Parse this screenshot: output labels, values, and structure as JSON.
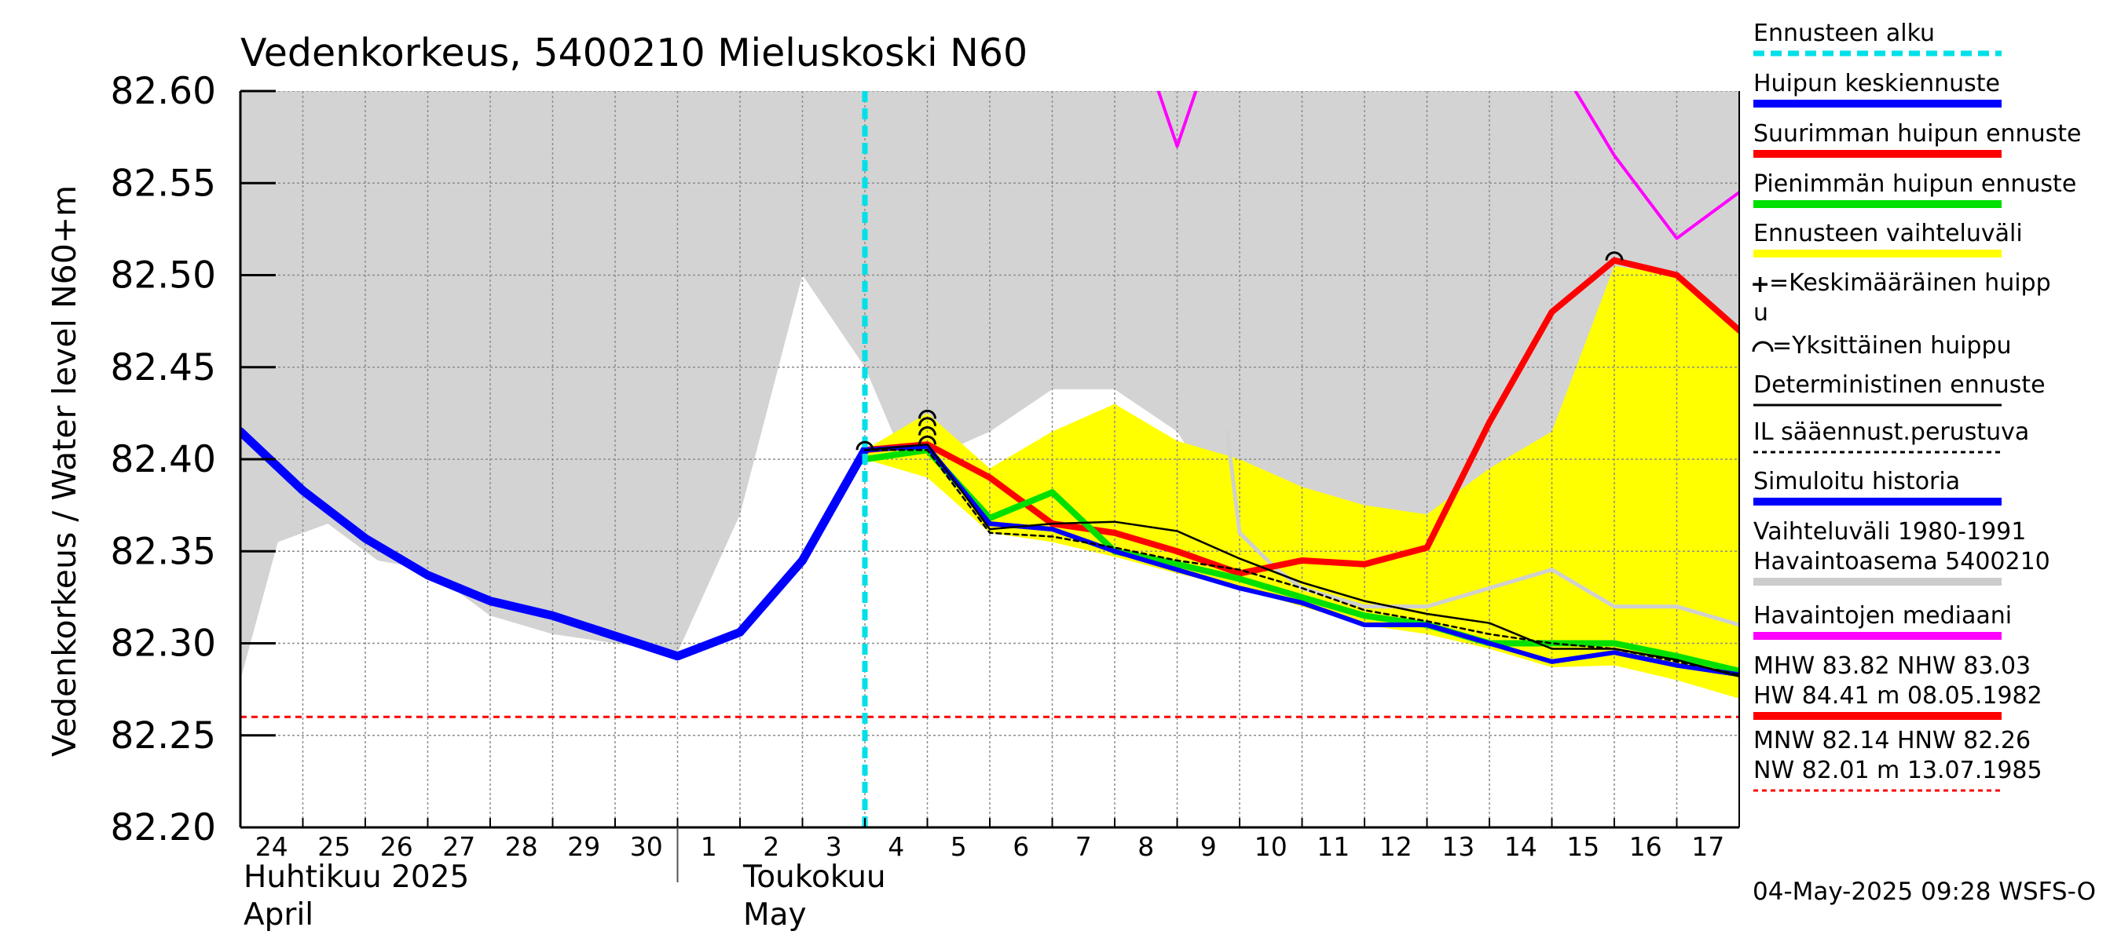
{
  "chart_data": {
    "type": "line",
    "title": "Vedenkorkeus, 5400210 Mieluskoski N60",
    "ylabel": "Vedenkorkeus / Water level    N60+m",
    "ylim": [
      82.2,
      82.6
    ],
    "yticks": [
      "82.20",
      "82.25",
      "82.30",
      "82.35",
      "82.40",
      "82.45",
      "82.50",
      "82.55",
      "82.60"
    ],
    "xlim": [
      0,
      24
    ],
    "x_tick_labels": [
      "24",
      "25",
      "26",
      "27",
      "28",
      "29",
      "30",
      "1",
      "2",
      "3",
      "4",
      "5",
      "6",
      "7",
      "8",
      "9",
      "10",
      "11",
      "12",
      "13",
      "14",
      "15",
      "16",
      "17"
    ],
    "month_labels": [
      {
        "top": "Huhtikuu  2025",
        "bottom": "April",
        "x": 0
      },
      {
        "top": "Toukokuu",
        "bottom": "May",
        "x": 8
      }
    ],
    "month_divider_x": 7.0,
    "grid": true,
    "forecast_start_x": 10.0,
    "series": [
      {
        "name": "Vaihteluväli 1980-1991",
        "role": "range_upper",
        "x": [
          0,
          0.6,
          1.4,
          2.2,
          3,
          4,
          5,
          6,
          7,
          8,
          9,
          10,
          10.5,
          11,
          12,
          13,
          14,
          15,
          16,
          17,
          18,
          19,
          20,
          21,
          22,
          23,
          24
        ],
        "values": [
          82.6,
          82.6,
          82.6,
          82.6,
          82.6,
          82.6,
          82.6,
          82.6,
          82.6,
          82.6,
          82.6,
          82.6,
          82.6,
          82.6,
          82.6,
          82.6,
          82.6,
          82.6,
          82.6,
          82.6,
          82.6,
          82.6,
          82.6,
          82.6,
          82.6,
          82.6,
          82.6
        ]
      },
      {
        "name": "",
        "role": "range_lower",
        "x": [
          0,
          0.6,
          1.4,
          2.2,
          3,
          4,
          5,
          6,
          7,
          8,
          9,
          10,
          10.5,
          11,
          12,
          13,
          14,
          15,
          16,
          17,
          18,
          19,
          20,
          21,
          22,
          23,
          24
        ],
        "values": [
          82.28,
          82.355,
          82.365,
          82.345,
          82.34,
          82.315,
          82.305,
          82.3,
          82.295,
          82.37,
          82.5,
          82.45,
          82.41,
          82.4,
          82.415,
          82.438,
          82.438,
          82.415,
          82.362,
          82.33,
          82.335,
          82.325,
          82.33,
          82.34,
          82.32,
          82.32,
          82.32
        ]
      },
      {
        "name": "Ennusteen vaihteluväli",
        "role": "forecast_band_upper",
        "x": [
          10,
          11,
          12,
          13,
          14,
          15,
          16,
          17,
          18,
          19,
          20,
          21,
          22,
          23,
          24
        ],
        "values": [
          82.405,
          82.425,
          82.395,
          82.415,
          82.43,
          82.41,
          82.4,
          82.385,
          82.375,
          82.37,
          82.395,
          82.415,
          82.505,
          82.5,
          82.47
        ]
      },
      {
        "name": "",
        "role": "forecast_band_lower",
        "x": [
          10,
          11,
          12,
          13,
          14,
          15,
          16,
          17,
          18,
          19,
          20,
          21,
          22,
          23,
          24
        ],
        "values": [
          82.4,
          82.39,
          82.36,
          82.355,
          82.347,
          82.338,
          82.33,
          82.32,
          82.31,
          82.305,
          82.297,
          82.287,
          82.288,
          82.28,
          82.27
        ]
      },
      {
        "name": "Havaintojen mediaani",
        "role": "median",
        "x": [
          14.6,
          15,
          15.4,
          21.2,
          22,
          23,
          24
        ],
        "values": [
          82.61,
          82.57,
          82.61,
          82.61,
          82.565,
          82.52,
          82.545
        ]
      },
      {
        "name": "",
        "role": "range_median_grey",
        "x": [
          15.8,
          16,
          16.6,
          17,
          18,
          19,
          20,
          21,
          22,
          23,
          24
        ],
        "values": [
          82.415,
          82.36,
          82.34,
          82.33,
          82.32,
          82.32,
          82.33,
          82.34,
          82.32,
          82.32,
          82.31
        ]
      },
      {
        "name": "Suurimman huipun ennuste",
        "role": "max",
        "x": [
          10,
          11,
          12,
          13,
          14,
          15,
          16,
          17,
          18,
          19,
          20,
          21,
          22,
          23,
          24
        ],
        "values": [
          82.405,
          82.408,
          82.39,
          82.365,
          82.36,
          82.35,
          82.338,
          82.345,
          82.343,
          82.352,
          82.42,
          82.48,
          82.508,
          82.5,
          82.47
        ]
      },
      {
        "name": "Pienimmän huipun ennuste",
        "role": "min",
        "x": [
          10,
          11,
          12,
          13,
          14,
          15,
          16,
          17,
          18,
          19,
          20,
          21,
          22,
          23,
          24
        ],
        "values": [
          82.4,
          82.405,
          82.368,
          82.382,
          82.35,
          82.343,
          82.335,
          82.325,
          82.315,
          82.31,
          82.3,
          82.3,
          82.3,
          82.293,
          82.285
        ]
      },
      {
        "name": "Deterministinen ennuste",
        "role": "deterministic",
        "x": [
          10,
          11,
          12,
          13,
          14,
          15,
          16,
          17,
          18,
          19,
          20,
          21,
          22,
          23,
          24
        ],
        "values": [
          82.405,
          82.408,
          82.362,
          82.365,
          82.366,
          82.361,
          82.346,
          82.333,
          82.323,
          82.316,
          82.311,
          82.297,
          82.297,
          82.291,
          82.282
        ]
      },
      {
        "name": "IL sääennust.perustuva",
        "role": "il",
        "x": [
          10,
          11,
          12,
          13,
          14,
          15,
          16,
          17,
          18,
          19,
          20,
          21,
          22,
          23,
          24
        ],
        "values": [
          82.405,
          82.405,
          82.36,
          82.358,
          82.352,
          82.345,
          82.34,
          82.33,
          82.318,
          82.312,
          82.305,
          82.3,
          82.297,
          82.29,
          82.283
        ]
      },
      {
        "name": "Simuloitu historia",
        "role": "simulated",
        "x": [
          0,
          1,
          2,
          3,
          4,
          5,
          6,
          7,
          8,
          9,
          10
        ],
        "values": [
          82.415,
          82.383,
          82.357,
          82.337,
          82.323,
          82.315,
          82.304,
          82.293,
          82.306,
          82.345,
          82.405
        ]
      },
      {
        "name": "Huipun keskiennuste",
        "role": "mean",
        "x": [
          9,
          10,
          11,
          12,
          13,
          14,
          15,
          16,
          17,
          18,
          19,
          20,
          21,
          22,
          23,
          24
        ],
        "values": [
          82.345,
          82.405,
          82.407,
          82.365,
          82.362,
          82.35,
          82.34,
          82.33,
          82.322,
          82.31,
          82.31,
          82.3,
          82.29,
          82.295,
          82.288,
          82.283
        ]
      }
    ],
    "reference_line": {
      "value": 82.26,
      "color": "#ff0000",
      "style": "dashed"
    },
    "peak_markers": [
      {
        "x": 10.0,
        "y": 82.405
      },
      {
        "x": 11.0,
        "y": 82.408
      },
      {
        "x": 11.0,
        "y": 82.413
      },
      {
        "x": 11.0,
        "y": 82.418
      },
      {
        "x": 11.0,
        "y": 82.422
      },
      {
        "x": 22.0,
        "y": 82.508
      }
    ]
  },
  "legend": {
    "items": [
      {
        "label": "Ennusteen alku",
        "color": "#00e0e8",
        "style": "dashed"
      },
      {
        "label": "Huipun keskiennuste",
        "color": "#0000ff",
        "style": "solid"
      },
      {
        "label": "Suurimman huipun ennuste",
        "color": "#ff0000",
        "style": "solid"
      },
      {
        "label": "Pienimmän huipun ennuste",
        "color": "#00e000",
        "style": "solid"
      },
      {
        "label": "Ennusteen vaihteluväli",
        "color": "#ffff00",
        "style": "solid"
      },
      {
        "label": "=Keskimääräinen huipp",
        "label2": "u",
        "symbol": "+",
        "style": "none"
      },
      {
        "label": "=Yksittäinen huippu",
        "symbol": "arc",
        "style": "none"
      },
      {
        "label": "Deterministinen ennuste",
        "color": "#000000",
        "style": "thin"
      },
      {
        "label": "IL sääennust.perustuva",
        "color": "#000000",
        "style": "dashed"
      },
      {
        "label": "Simuloitu historia",
        "color": "#0000ff",
        "style": "solid"
      },
      {
        "label": "Vaihteluväli 1980-1991",
        "label2": " Havaintoasema 5400210",
        "color": "#cccccc",
        "style": "solid"
      },
      {
        "label": "Havaintojen mediaani",
        "color": "#ff00ff",
        "style": "solid"
      },
      {
        "label": "MHW  83.82 NHW  83.03",
        "label2": "HW  84.41 m 08.05.1982",
        "color": "#ff0000",
        "style": "solid"
      },
      {
        "label": "MNW  82.14 HNW  82.26",
        "label2": "NW  82.01 m 13.07.1985",
        "color": "#ff0000",
        "style": "dashed"
      }
    ]
  },
  "footer": {
    "timestamp": "04-May-2025 09:28 WSFS-O"
  },
  "colors": {
    "range_grey": "#d3d3d3",
    "band_yellow": "#ffff00",
    "cyan": "#00e0e8",
    "magenta": "#ff00ff",
    "light_grey_line": "#d0d0d0"
  }
}
